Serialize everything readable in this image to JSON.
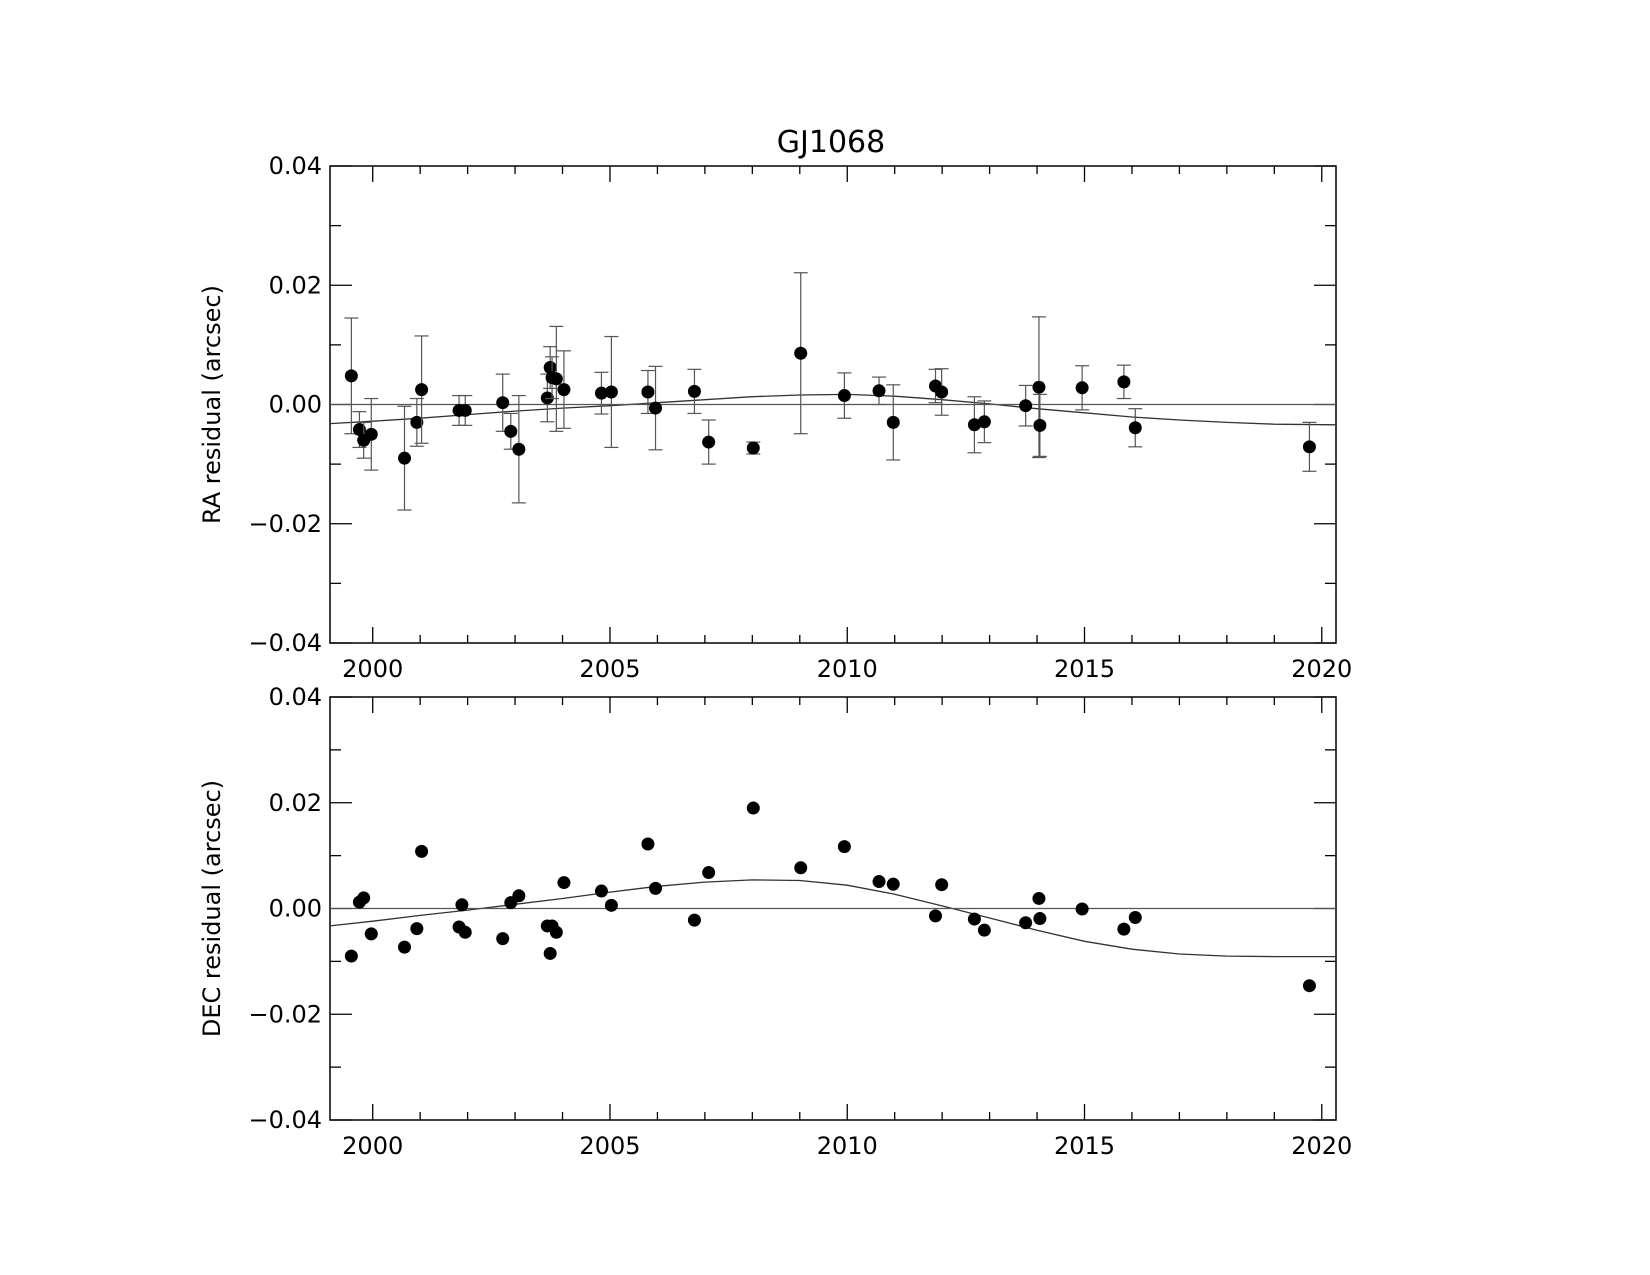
{
  "chart_data": [
    {
      "type": "scatter",
      "title": "GJ1068",
      "xlabel": "",
      "ylabel": "RA residual (arcsec)",
      "xlim": [
        1999.1,
        2020.3
      ],
      "ylim": [
        -0.04,
        0.04
      ],
      "x_ticks": [
        "2000",
        "2005",
        "2010",
        "2015",
        "2020"
      ],
      "y_ticks": [
        "0.04",
        "0.02",
        "0.00",
        "−0.02",
        "−0.04"
      ],
      "grid": false,
      "series": [
        {
          "kind": "points_with_error_bars",
          "x": [
            1999.55,
            1999.72,
            1999.81,
            1999.97,
            2000.67,
            2000.93,
            2001.03,
            2001.82,
            2001.95,
            2002.74,
            2002.91,
            2003.08,
            2003.68,
            2003.74,
            2003.78,
            2003.87,
            2004.03,
            2004.82,
            2005.03,
            2005.8,
            2005.96,
            2006.78,
            2007.08,
            2008.02,
            2009.02,
            2009.94,
            2010.67,
            2010.97,
            2011.86,
            2011.99,
            2012.68,
            2012.89,
            2013.76,
            2014.04,
            2014.06,
            2014.95,
            2015.83,
            2016.07,
            2019.74
          ],
          "y": [
            0.0048,
            -0.0042,
            -0.006,
            -0.005,
            -0.009,
            -0.003,
            0.0025,
            -0.001,
            -0.001,
            0.0003,
            -0.0045,
            -0.0075,
            0.0011,
            0.0062,
            0.0045,
            0.0043,
            0.0025,
            0.0019,
            0.0021,
            0.0021,
            -0.0006,
            0.0022,
            -0.0063,
            -0.0073,
            0.0086,
            0.0015,
            0.0023,
            -0.003,
            0.0031,
            0.0021,
            -0.0034,
            -0.0029,
            -0.0002,
            0.0029,
            -0.0035,
            0.0028,
            0.0038,
            -0.0039,
            -0.0071
          ],
          "err": [
            0.0097,
            0.003,
            0.003,
            0.006,
            0.0087,
            0.004,
            0.009,
            0.0025,
            0.0025,
            0.0048,
            0.003,
            0.009,
            0.004,
            0.0035,
            0.0035,
            0.0088,
            0.0065,
            0.0035,
            0.0093,
            0.0036,
            0.007,
            0.0037,
            0.0037,
            0.001,
            0.0135,
            0.0038,
            0.0023,
            0.0063,
            0.0028,
            0.0039,
            0.0047,
            0.0035,
            0.0034,
            0.0118,
            0.0052,
            0.0037,
            0.0028,
            0.0032,
            0.0041
          ]
        },
        {
          "kind": "fit_curve",
          "x": [
            1999.1,
            2000,
            2001,
            2002,
            2003,
            2004,
            2005,
            2006,
            2007,
            2008,
            2009,
            2010,
            2011,
            2012,
            2013,
            2014,
            2015,
            2016,
            2017,
            2018,
            2019,
            2020.3
          ],
          "y": [
            -0.0032,
            -0.0028,
            -0.0023,
            -0.0017,
            -0.0011,
            -0.0006,
            -0.0002,
            0.0003,
            0.0008,
            0.0013,
            0.0016,
            0.0017,
            0.0014,
            0.0008,
            0.0001,
            -0.0007,
            -0.0014,
            -0.0021,
            -0.0026,
            -0.003,
            -0.0033,
            -0.0034
          ]
        },
        {
          "kind": "zero_line",
          "x": [
            1999.1,
            2020.3
          ],
          "y": [
            0,
            0
          ]
        }
      ]
    },
    {
      "type": "scatter",
      "title": "",
      "xlabel": "",
      "ylabel": "DEC residual (arcsec)",
      "xlim": [
        1999.1,
        2020.3
      ],
      "ylim": [
        -0.04,
        0.04
      ],
      "x_ticks": [
        "2000",
        "2005",
        "2010",
        "2015",
        "2020"
      ],
      "y_ticks": [
        "0.04",
        "0.02",
        "0.00",
        "−0.02",
        "−0.04"
      ],
      "grid": false,
      "series": [
        {
          "kind": "points_with_error_bars",
          "x": [
            1999.55,
            1999.72,
            1999.81,
            1999.97,
            2000.67,
            2000.93,
            2001.03,
            2001.82,
            2001.88,
            2001.95,
            2002.74,
            2002.91,
            2003.08,
            2003.68,
            2003.74,
            2003.78,
            2003.87,
            2004.03,
            2004.82,
            2005.03,
            2005.8,
            2005.96,
            2006.78,
            2007.08,
            2008.02,
            2009.02,
            2009.94,
            2010.67,
            2010.97,
            2011.86,
            2011.99,
            2012.68,
            2012.89,
            2013.76,
            2014.04,
            2014.06,
            2014.95,
            2015.83,
            2016.07,
            2019.74
          ],
          "y": [
            -0.009,
            0.0012,
            0.002,
            -0.0048,
            -0.0073,
            -0.0038,
            0.0108,
            -0.0035,
            0.0007,
            -0.0045,
            -0.0057,
            0.0011,
            0.0024,
            -0.0033,
            -0.0085,
            -0.0033,
            -0.0045,
            0.0049,
            0.0033,
            0.0006,
            0.0122,
            0.0038,
            -0.0022,
            0.0068,
            0.019,
            0.0077,
            0.0117,
            0.0051,
            0.0046,
            -0.0014,
            0.0045,
            -0.002,
            -0.0041,
            -0.0027,
            0.0019,
            -0.0019,
            -0.0001,
            -0.0039,
            -0.0017,
            -0.0146
          ]
        },
        {
          "kind": "fit_curve",
          "x": [
            1999.1,
            2000,
            2001,
            2002,
            2003,
            2004,
            2005,
            2006,
            2007,
            2008,
            2009,
            2010,
            2011,
            2012,
            2013,
            2014,
            2015,
            2016,
            2017,
            2018,
            2019,
            2020.3
          ],
          "y": [
            -0.0033,
            -0.0024,
            -0.0013,
            -0.0003,
            0.0008,
            0.0019,
            0.0031,
            0.0042,
            0.005,
            0.0054,
            0.0053,
            0.0044,
            0.0027,
            0.0005,
            -0.0018,
            -0.0041,
            -0.0062,
            -0.0077,
            -0.0086,
            -0.009,
            -0.0091,
            -0.0091
          ]
        },
        {
          "kind": "zero_line",
          "x": [
            1999.1,
            2020.3
          ],
          "y": [
            0,
            0
          ]
        }
      ]
    }
  ]
}
